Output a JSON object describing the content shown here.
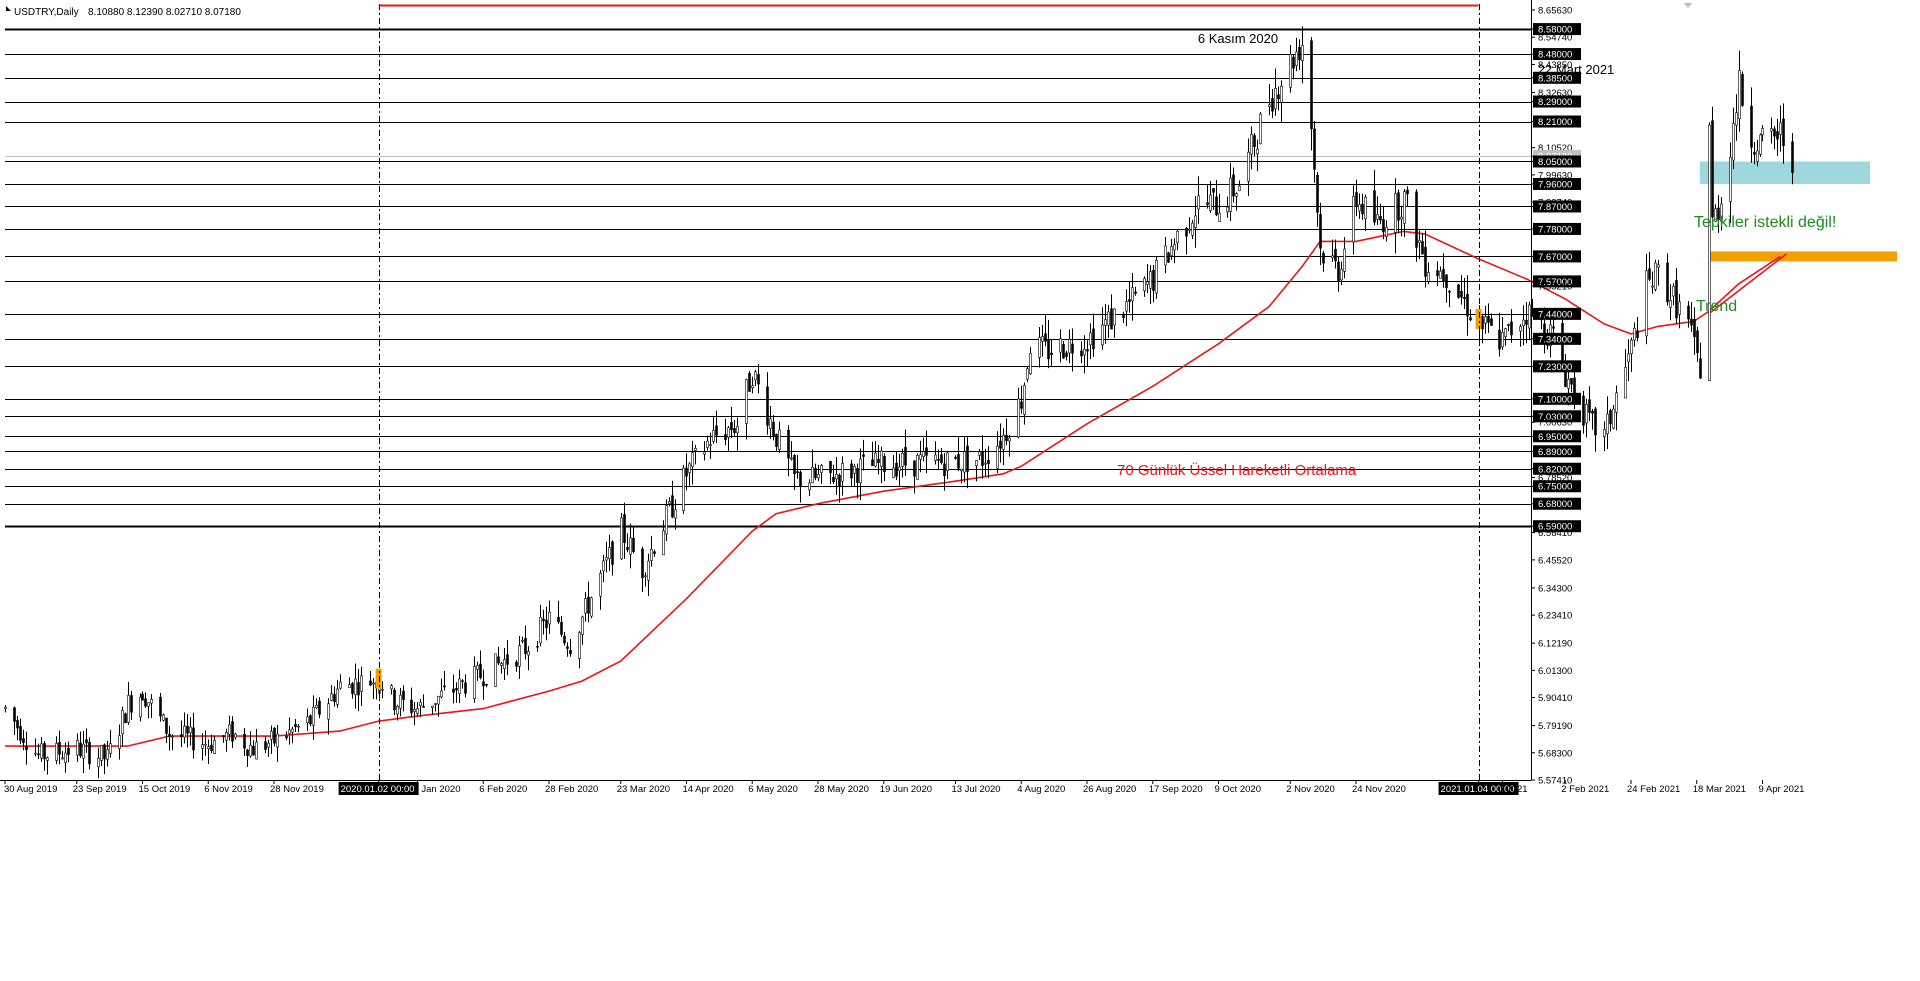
{
  "header": {
    "symbol": "USDTRY,Daily",
    "ohlc": "8.10880 8.12390 8.02710 8.07180"
  },
  "colors": {
    "background": "#ffffff",
    "candle": "#000000",
    "ema": "#e8161a",
    "grid": "#000000",
    "zone_resistance": "#9fd8dc",
    "zone_trend": "#f0a000",
    "annotation_green": "#1f8a1f",
    "annotation_red": "#e8161a",
    "separator_label_bg": "#000000",
    "separator_label_text": "#ffffff",
    "top_line": "#e8161a"
  },
  "annotations": {
    "peak1": "6 Kasım 2020",
    "peak2": "22 Mart 2021",
    "resistance_note": "Tepkiler istekli değil!",
    "trend_note": "Trend",
    "ema_label": "70 Günlük Üssel Hareketli Ortalama"
  },
  "separators": {
    "sep1_label": "2020.01.02 00:00",
    "sep2_label": "2021.01.04 00:00"
  },
  "chart_data": {
    "type": "candlestick",
    "title": "USDTRY,Daily",
    "ylim": [
      5.5741,
      8.6804
    ],
    "y_tick_labels": [
      "8.65630",
      "8.58000",
      "8.54740",
      "8.48000",
      "8.43850",
      "8.38500",
      "8.32630",
      "8.29000",
      "8.21000",
      "8.10520",
      "8.07180",
      "8.05000",
      "7.99630",
      "7.96000",
      "7.88740",
      "7.87000",
      "7.78000",
      "7.67000",
      "7.57000",
      "7.55210",
      "7.44000",
      "7.34000",
      "7.23000",
      "7.10000",
      "7.03000",
      "7.00630",
      "6.95000",
      "6.89000",
      "6.82000",
      "6.78520",
      "6.75000",
      "6.68000",
      "6.59000",
      "6.56410",
      "6.45520",
      "6.34300",
      "6.23410",
      "6.12190",
      "6.01300",
      "5.90410",
      "5.79190",
      "5.68300",
      "5.57410"
    ],
    "highlighted_levels": [
      "8.58000",
      "8.48000",
      "8.38500",
      "8.29000",
      "8.21000",
      "8.05000",
      "7.96000",
      "7.87000",
      "7.78000",
      "7.67000",
      "7.57000",
      "7.44000",
      "7.34000",
      "7.23000",
      "7.10000",
      "7.03000",
      "6.95000",
      "6.89000",
      "6.82000",
      "6.75000",
      "6.68000",
      "6.59000"
    ],
    "current_price": "8.07180",
    "x_tick_labels": [
      "30 Aug 2019",
      "23 Sep 2019",
      "15 Oct 2019",
      "6 Nov 2019",
      "28 Nov 2019",
      "2020.01.02 00:00",
      "5 Jan 2020",
      "6 Feb 2020",
      "28 Feb 2020",
      "23 Mar 2020",
      "14 Apr 2020",
      "6 May 2020",
      "28 May 2020",
      "19 Jun 2020",
      "13 Jul 2020",
      "4 Aug 2020",
      "26 Aug 2020",
      "17 Sep 2020",
      "9 Oct 2020",
      "2 Nov 2020",
      "24 Nov 2020",
      "2021.01.04 00:00",
      "n 2021",
      "2 Feb 2021",
      "24 Feb 2021",
      "18 Mar 2021",
      "9 Apr 2021"
    ],
    "price_path": [
      {
        "date": "2019-08-30",
        "value": 5.86
      },
      {
        "date": "2019-09-10",
        "value": 5.67
      },
      {
        "date": "2019-09-23",
        "value": 5.7
      },
      {
        "date": "2019-10-03",
        "value": 5.66
      },
      {
        "date": "2019-10-10",
        "value": 5.88
      },
      {
        "date": "2019-10-15",
        "value": 5.93
      },
      {
        "date": "2019-10-24",
        "value": 5.76
      },
      {
        "date": "2019-11-06",
        "value": 5.72
      },
      {
        "date": "2019-11-14",
        "value": 5.76
      },
      {
        "date": "2019-11-21",
        "value": 5.7
      },
      {
        "date": "2019-11-28",
        "value": 5.73
      },
      {
        "date": "2019-12-10",
        "value": 5.81
      },
      {
        "date": "2019-12-20",
        "value": 5.95
      },
      {
        "date": "2020-01-02",
        "value": 5.98
      },
      {
        "date": "2020-01-07",
        "value": 5.89
      },
      {
        "date": "2020-01-15",
        "value": 5.86
      },
      {
        "date": "2020-02-06",
        "value": 6.0
      },
      {
        "date": "2020-02-20",
        "value": 6.1
      },
      {
        "date": "2020-02-28",
        "value": 6.22
      },
      {
        "date": "2020-03-06",
        "value": 6.12
      },
      {
        "date": "2020-03-23",
        "value": 6.57
      },
      {
        "date": "2020-03-30",
        "value": 6.42
      },
      {
        "date": "2020-04-14",
        "value": 6.8
      },
      {
        "date": "2020-04-22",
        "value": 6.94
      },
      {
        "date": "2020-05-01",
        "value": 7.0
      },
      {
        "date": "2020-05-06",
        "value": 7.21
      },
      {
        "date": "2020-05-14",
        "value": 6.95
      },
      {
        "date": "2020-05-20",
        "value": 6.78
      },
      {
        "date": "2020-05-28",
        "value": 6.78
      },
      {
        "date": "2020-06-10",
        "value": 6.82
      },
      {
        "date": "2020-06-19",
        "value": 6.84
      },
      {
        "date": "2020-07-13",
        "value": 6.85
      },
      {
        "date": "2020-07-22",
        "value": 6.86
      },
      {
        "date": "2020-07-29",
        "value": 6.95
      },
      {
        "date": "2020-08-04",
        "value": 7.1
      },
      {
        "date": "2020-08-07",
        "value": 7.32
      },
      {
        "date": "2020-08-12",
        "value": 7.29
      },
      {
        "date": "2020-08-26",
        "value": 7.34
      },
      {
        "date": "2020-09-10",
        "value": 7.49
      },
      {
        "date": "2020-09-17",
        "value": 7.58
      },
      {
        "date": "2020-09-25",
        "value": 7.75
      },
      {
        "date": "2020-10-02",
        "value": 7.88
      },
      {
        "date": "2020-10-09",
        "value": 7.88
      },
      {
        "date": "2020-10-16",
        "value": 7.96
      },
      {
        "date": "2020-10-26",
        "value": 8.3
      },
      {
        "date": "2020-11-06",
        "value": 8.53
      },
      {
        "date": "2020-11-09",
        "value": 8.2
      },
      {
        "date": "2020-11-12",
        "value": 7.7
      },
      {
        "date": "2020-11-18",
        "value": 7.62
      },
      {
        "date": "2020-11-24",
        "value": 7.9
      },
      {
        "date": "2020-12-01",
        "value": 7.8
      },
      {
        "date": "2020-12-10",
        "value": 7.9
      },
      {
        "date": "2020-12-17",
        "value": 7.65
      },
      {
        "date": "2020-12-24",
        "value": 7.6
      },
      {
        "date": "2021-01-04",
        "value": 7.4
      },
      {
        "date": "2021-01-12",
        "value": 7.33
      },
      {
        "date": "2021-01-20",
        "value": 7.45
      },
      {
        "date": "2021-01-29",
        "value": 7.35
      },
      {
        "date": "2021-02-02",
        "value": 7.2
      },
      {
        "date": "2021-02-10",
        "value": 7.0
      },
      {
        "date": "2021-02-15",
        "value": 6.95
      },
      {
        "date": "2021-02-24",
        "value": 7.3
      },
      {
        "date": "2021-03-01",
        "value": 7.55
      },
      {
        "date": "2021-03-05",
        "value": 7.6
      },
      {
        "date": "2021-03-10",
        "value": 7.5
      },
      {
        "date": "2021-03-15",
        "value": 7.4
      },
      {
        "date": "2021-03-17",
        "value": 7.3
      },
      {
        "date": "2021-03-19",
        "value": 7.22
      },
      {
        "date": "2021-03-22",
        "value": 8.2
      },
      {
        "date": "2021-03-23",
        "value": 7.8
      },
      {
        "date": "2021-03-26",
        "value": 7.9
      },
      {
        "date": "2021-04-01",
        "value": 8.35
      },
      {
        "date": "2021-04-05",
        "value": 8.15
      },
      {
        "date": "2021-04-09",
        "value": 8.12
      },
      {
        "date": "2021-04-15",
        "value": 8.16
      },
      {
        "date": "2021-04-19",
        "value": 8.07
      }
    ],
    "ema70": [
      {
        "date": "2019-08-30",
        "value": 5.71
      },
      {
        "date": "2019-10-10",
        "value": 5.71
      },
      {
        "date": "2019-10-24",
        "value": 5.75
      },
      {
        "date": "2019-11-28",
        "value": 5.75
      },
      {
        "date": "2019-12-20",
        "value": 5.77
      },
      {
        "date": "2020-01-02",
        "value": 5.81
      },
      {
        "date": "2020-01-15",
        "value": 5.83
      },
      {
        "date": "2020-02-06",
        "value": 5.86
      },
      {
        "date": "2020-02-28",
        "value": 5.93
      },
      {
        "date": "2020-03-10",
        "value": 5.97
      },
      {
        "date": "2020-03-23",
        "value": 6.05
      },
      {
        "date": "2020-04-14",
        "value": 6.3
      },
      {
        "date": "2020-05-06",
        "value": 6.57
      },
      {
        "date": "2020-05-14",
        "value": 6.64
      },
      {
        "date": "2020-05-28",
        "value": 6.68
      },
      {
        "date": "2020-06-19",
        "value": 6.73
      },
      {
        "date": "2020-07-13",
        "value": 6.77
      },
      {
        "date": "2020-07-29",
        "value": 6.8
      },
      {
        "date": "2020-08-04",
        "value": 6.83
      },
      {
        "date": "2020-08-26",
        "value": 7.0
      },
      {
        "date": "2020-09-17",
        "value": 7.15
      },
      {
        "date": "2020-10-09",
        "value": 7.32
      },
      {
        "date": "2020-10-26",
        "value": 7.47
      },
      {
        "date": "2020-11-06",
        "value": 7.63
      },
      {
        "date": "2020-11-12",
        "value": 7.73
      },
      {
        "date": "2020-11-24",
        "value": 7.73
      },
      {
        "date": "2020-12-10",
        "value": 7.77
      },
      {
        "date": "2020-12-17",
        "value": 7.76
      },
      {
        "date": "2021-01-04",
        "value": 7.66
      },
      {
        "date": "2021-01-20",
        "value": 7.58
      },
      {
        "date": "2021-02-02",
        "value": 7.5
      },
      {
        "date": "2021-02-15",
        "value": 7.4
      },
      {
        "date": "2021-02-24",
        "value": 7.36
      },
      {
        "date": "2021-03-05",
        "value": 7.39
      },
      {
        "date": "2021-03-17",
        "value": 7.41
      },
      {
        "date": "2021-03-22",
        "value": 7.45
      },
      {
        "date": "2021-04-01",
        "value": 7.56
      },
      {
        "date": "2021-04-15",
        "value": 7.67
      }
    ],
    "zones": [
      {
        "name": "resistance",
        "from_date": "2021-03-19",
        "to_date": "2021-05-15",
        "low": 7.96,
        "high": 8.05
      },
      {
        "name": "trend",
        "from_date": "2021-03-22",
        "to_date": "2021-05-24",
        "low": 7.65,
        "high": 7.69
      }
    ],
    "trend_line": [
      {
        "date": "2021-03-22",
        "value": 7.44
      },
      {
        "date": "2021-04-17",
        "value": 7.68
      }
    ],
    "marked_candles": [
      {
        "date": "2020-01-02",
        "low": 5.94,
        "high": 6.02
      },
      {
        "date": "2021-01-04",
        "low": 7.38,
        "high": 7.46
      }
    ],
    "separator_dates": [
      "2020-01-02",
      "2021-01-04"
    ],
    "grid": true,
    "legend": "none"
  }
}
